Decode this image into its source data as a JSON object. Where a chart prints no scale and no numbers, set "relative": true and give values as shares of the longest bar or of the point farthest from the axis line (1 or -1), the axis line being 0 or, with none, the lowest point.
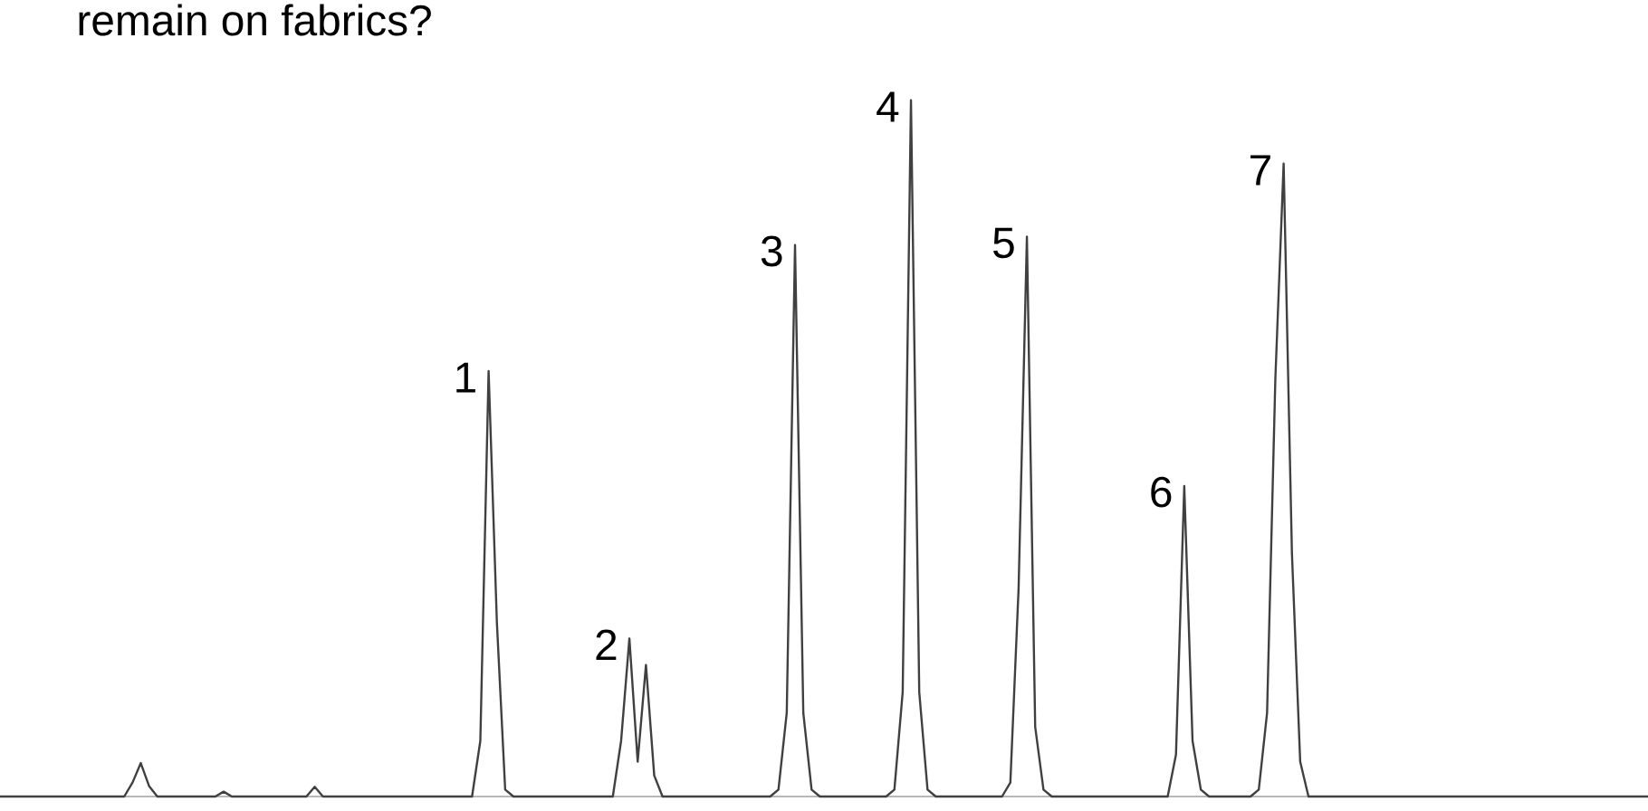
{
  "chart_data": {
    "type": "line",
    "relative": true,
    "title": "remain on fabrics?",
    "tick_labels": false,
    "categories": [
      null,
      null,
      null,
      null,
      null,
      null,
      null,
      null,
      null,
      null,
      null,
      null,
      null,
      null,
      null,
      null,
      null,
      null,
      null,
      null,
      null,
      null,
      null,
      null,
      null,
      null,
      null,
      null,
      null,
      null,
      null,
      null,
      null,
      null,
      null,
      null,
      null,
      null,
      null,
      null,
      null,
      null,
      null,
      null,
      null,
      null,
      null,
      null,
      null,
      null,
      null,
      null,
      null,
      null,
      null,
      null,
      null,
      null,
      null,
      null,
      null,
      null,
      null,
      null,
      null,
      null,
      null,
      null,
      null,
      null,
      null,
      null,
      null,
      null,
      null,
      null,
      null,
      null,
      null,
      null,
      null,
      null,
      null,
      null,
      null,
      null,
      null,
      null,
      null,
      null,
      null,
      null,
      null,
      null,
      null,
      null,
      null,
      null,
      null,
      null,
      null,
      null,
      null,
      null,
      null,
      null,
      null,
      null,
      null,
      null,
      null,
      null,
      null,
      null,
      null,
      null,
      null,
      null,
      null,
      null,
      null,
      null,
      null,
      null,
      null,
      null,
      null,
      null,
      null,
      null,
      null,
      null,
      null,
      null,
      null,
      null,
      null,
      null,
      null,
      null,
      null,
      null,
      null,
      null,
      null,
      null,
      null,
      null,
      null,
      null,
      null,
      null,
      null,
      null,
      null,
      null,
      null,
      null,
      null,
      null,
      null,
      null,
      null,
      null,
      null,
      null,
      null,
      null,
      null,
      null,
      null,
      null,
      null,
      null,
      null,
      null,
      null,
      null,
      null,
      null,
      null,
      null,
      null,
      null,
      null,
      null,
      null,
      null,
      null,
      null,
      null,
      null,
      null,
      null,
      null,
      null,
      null,
      null,
      null,
      null
    ],
    "series": [
      {
        "color": "#404040",
        "values": [
          0,
          0,
          0,
          0,
          0,
          0,
          0,
          0,
          0,
          0,
          0,
          0,
          0,
          0,
          0,
          0,
          0.02,
          0.048,
          0.015,
          0,
          0,
          0,
          0,
          0,
          0,
          0,
          0,
          0.007,
          0,
          0,
          0,
          0,
          0,
          0,
          0,
          0,
          0,
          0,
          0.014,
          0,
          0,
          0,
          0,
          0,
          0,
          0,
          0,
          0,
          0,
          0,
          0,
          0,
          0,
          0,
          0,
          0,
          0,
          0,
          0.08,
          0.611,
          0.25,
          0.01,
          0,
          0,
          0,
          0,
          0,
          0,
          0,
          0,
          0,
          0,
          0,
          0,
          0,
          0.08,
          0.227,
          0.05,
          0.189,
          0.03,
          0,
          0,
          0,
          0,
          0,
          0,
          0,
          0,
          0,
          0,
          0,
          0,
          0,
          0,
          0.01,
          0.12,
          0.792,
          0.12,
          0.01,
          0,
          0,
          0,
          0,
          0,
          0,
          0,
          0,
          0,
          0.01,
          0.15,
          1.0,
          0.15,
          0.01,
          0,
          0,
          0,
          0,
          0,
          0,
          0,
          0,
          0,
          0.02,
          0.3,
          0.804,
          0.1,
          0.01,
          0,
          0,
          0,
          0,
          0,
          0,
          0,
          0,
          0,
          0,
          0,
          0,
          0,
          0,
          0,
          0.06,
          0.446,
          0.08,
          0.01,
          0,
          0,
          0,
          0,
          0,
          0,
          0.01,
          0.12,
          0.6,
          0.909,
          0.35,
          0.05,
          0,
          0,
          0,
          0,
          0,
          0,
          0,
          0,
          0,
          0,
          0,
          0,
          0,
          0,
          0,
          0,
          0,
          0,
          0,
          0,
          0,
          0,
          0,
          0,
          0,
          0,
          0,
          0,
          0,
          0,
          0,
          0,
          0,
          0,
          0,
          0,
          0,
          0,
          0,
          0,
          0,
          0
        ]
      }
    ],
    "annotations": [
      "1",
      "2",
      "3",
      "4",
      "5",
      "6",
      "7"
    ]
  }
}
